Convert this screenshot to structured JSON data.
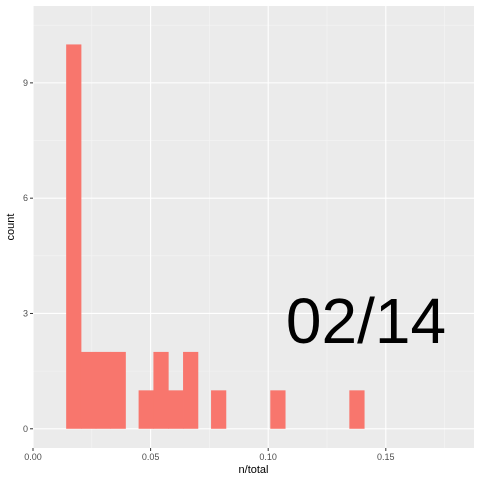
{
  "chart_data": {
    "type": "bar",
    "subtype": "histogram",
    "title": "",
    "xlabel": "n/total",
    "ylabel": "count",
    "xlim": [
      0.0,
      0.1875
    ],
    "ylim": [
      -0.5,
      11.0
    ],
    "x_ticks": [
      0.0,
      0.05,
      0.1,
      0.15
    ],
    "x_tick_labels": [
      "0.00",
      "0.05",
      "0.10",
      "0.15"
    ],
    "x_minor_ticks": [
      0.025,
      0.075,
      0.125,
      0.175
    ],
    "y_ticks": [
      0,
      3,
      6,
      9
    ],
    "y_tick_labels": [
      "0",
      "3",
      "6",
      "9"
    ],
    "y_minor_ticks": [
      1.5,
      4.5,
      7.5,
      10.5
    ],
    "bin_width": 0.0063,
    "bins": [
      {
        "x0": 0.0141,
        "x1": 0.0204,
        "count": 10
      },
      {
        "x0": 0.0204,
        "x1": 0.0267,
        "count": 2
      },
      {
        "x0": 0.0267,
        "x1": 0.033,
        "count": 2
      },
      {
        "x0": 0.033,
        "x1": 0.0393,
        "count": 2
      },
      {
        "x0": 0.0449,
        "x1": 0.0512,
        "count": 1
      },
      {
        "x0": 0.0512,
        "x1": 0.0575,
        "count": 2
      },
      {
        "x0": 0.0575,
        "x1": 0.0638,
        "count": 1
      },
      {
        "x0": 0.0638,
        "x1": 0.0701,
        "count": 2
      },
      {
        "x0": 0.0757,
        "x1": 0.082,
        "count": 1
      },
      {
        "x0": 0.1009,
        "x1": 0.1072,
        "count": 1
      },
      {
        "x0": 0.1345,
        "x1": 0.1408,
        "count": 1
      }
    ],
    "grid": true,
    "legend": "none",
    "colors": {
      "bar": "#F8766D",
      "panel_background": "#EBEBEB",
      "grid_major": "#FFFFFF",
      "grid_minor": "#F5F5F5",
      "tick_text": "#4D4D4D",
      "tick_mark": "#333333"
    }
  },
  "overlay": {
    "text": "02/14"
  }
}
